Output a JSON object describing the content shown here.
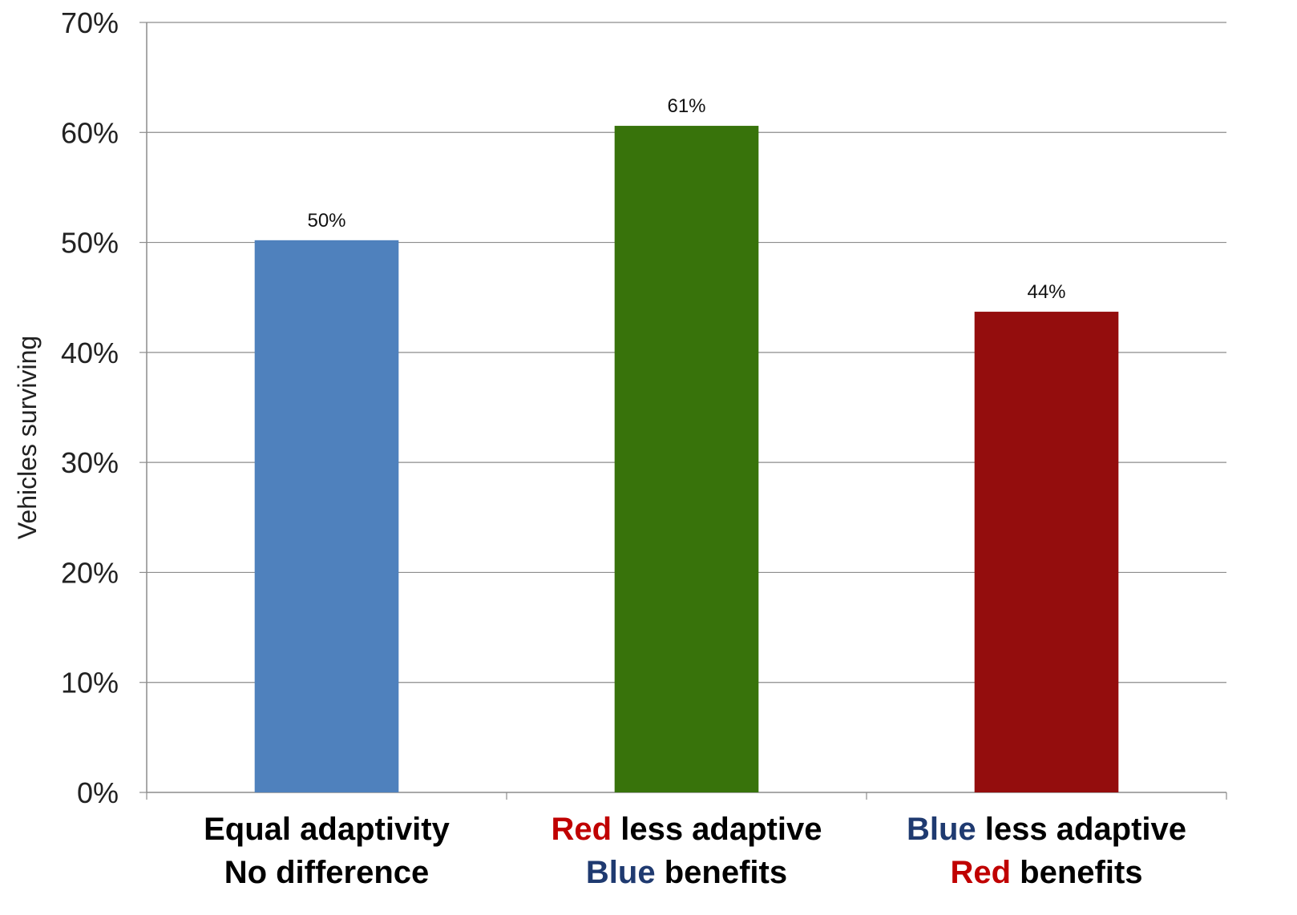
{
  "chart_data": {
    "type": "bar",
    "title": "",
    "xlabel": "",
    "ylabel": "Vehicles surviving",
    "ylim": [
      0,
      70
    ],
    "y_ticks": [
      "0%",
      "10%",
      "20%",
      "30%",
      "40%",
      "50%",
      "60%",
      "70%"
    ],
    "grid": true,
    "categories": [
      {
        "line1": [
          {
            "text": "Equal adaptivity",
            "color": "#000000"
          }
        ],
        "line2": [
          {
            "text": "No difference",
            "color": "#000000"
          }
        ]
      },
      {
        "line1": [
          {
            "text": "Red",
            "color": "#c00000"
          },
          {
            "text": " less adaptive",
            "color": "#000000"
          }
        ],
        "line2": [
          {
            "text": "Blue",
            "color": "#1f3a70"
          },
          {
            "text": " benefits",
            "color": "#000000"
          }
        ]
      },
      {
        "line1": [
          {
            "text": "Blue",
            "color": "#1f3a70"
          },
          {
            "text": " less adaptive",
            "color": "#000000"
          }
        ],
        "line2": [
          {
            "text": "Red",
            "color": "#c00000"
          },
          {
            "text": " benefits",
            "color": "#000000"
          }
        ]
      }
    ],
    "values": [
      50.2,
      60.6,
      43.7
    ],
    "data_labels": [
      "50%",
      "61%",
      "44%"
    ],
    "colors": [
      "#4f81bd",
      "#38730b",
      "#940d0d"
    ]
  }
}
